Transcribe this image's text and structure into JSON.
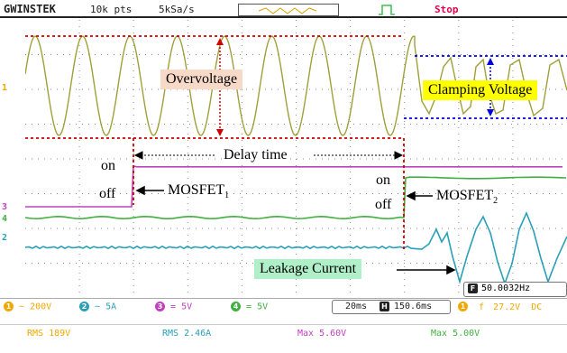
{
  "header": {
    "brand": "GWINSTEK",
    "points": "10k pts",
    "rate": "5kSa/s",
    "status": "Stop"
  },
  "annotations": {
    "overvoltage": "Overvoltage",
    "clamping": "Clamping Voltage",
    "delay": "Delay time",
    "on1": "on",
    "off1": "off",
    "mosfet1": "MOSFET",
    "mosfet1_sub": "1",
    "on2": "on",
    "off2": "off",
    "mosfet2": "MOSFET",
    "mosfet2_sub": "2",
    "leakage": "Leakage Current"
  },
  "channel_markers": [
    "1",
    "3",
    "4",
    "2"
  ],
  "footer": {
    "ch1": {
      "num": "1",
      "coupling": "~",
      "scale": "200V"
    },
    "ch2": {
      "num": "2",
      "coupling": "~",
      "scale": "5A"
    },
    "ch3": {
      "num": "3",
      "coupling": "=",
      "scale": "5V"
    },
    "ch4": {
      "num": "4",
      "coupling": "=",
      "scale": "5V"
    },
    "timebase": "20ms",
    "h_label": "H",
    "hpos": "150.6ms",
    "trig_src": "1",
    "trig_slope": "f",
    "trig_level": "27.2V",
    "trig_coupling": "DC",
    "freq_icon": "F",
    "freq": "50.0032Hz",
    "meas1": "RMS 189V",
    "meas2": "RMS 2.46A",
    "meas3": "Max 5.60V",
    "meas4": "Max 5.00V"
  },
  "colors": {
    "ch1": "#a0a03a",
    "ch2": "#2aa0b8",
    "ch3": "#c040c0",
    "ch4": "#40b040",
    "accent": "#f0a800",
    "overvoltage_box": "#f7d9c8",
    "clamping_box": "#ffff00",
    "leakage_box": "#b0f0c8"
  }
}
